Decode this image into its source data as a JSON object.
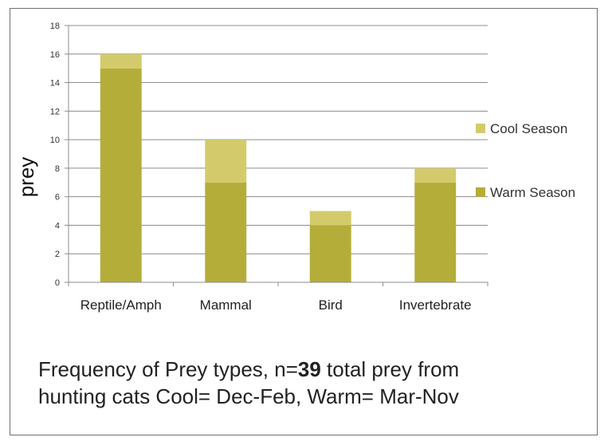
{
  "chart_data": {
    "type": "bar",
    "stacked": true,
    "categories": [
      "Reptile/Amph",
      "Mammal",
      "Bird",
      "Invertebrate"
    ],
    "series": [
      {
        "name": "Warm Season",
        "values": [
          15,
          7,
          4,
          7
        ],
        "color": "#b5ad3a"
      },
      {
        "name": "Cool Season",
        "values": [
          1,
          3,
          1,
          1
        ],
        "color": "#d3cb6b"
      }
    ],
    "ylabel": "prey",
    "ylim": [
      0,
      18
    ],
    "yticks": [
      0,
      2,
      4,
      6,
      8,
      10,
      12,
      14,
      16,
      18
    ],
    "grid": true,
    "legend_position": "right"
  },
  "caption": {
    "line1_pre": "Frequency of Prey types, n=",
    "line1_bold": "39",
    "line1_post": " total prey from",
    "line2": "hunting cats Cool= Dec-Feb, Warm= Mar-Nov"
  }
}
